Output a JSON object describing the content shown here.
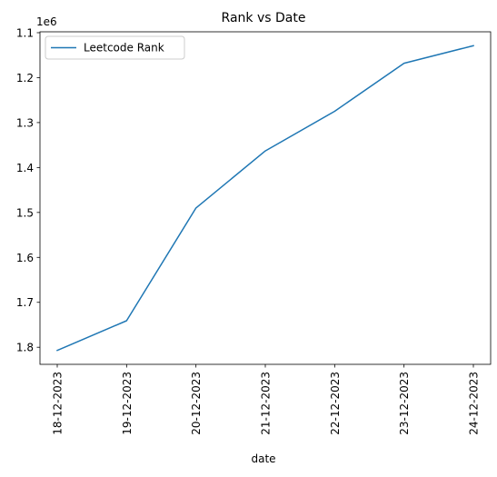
{
  "chart_data": {
    "type": "line",
    "title": "Rank vs Date",
    "xlabel": "date",
    "ylabel": "",
    "y_offset_label": "1e6",
    "y_inverted": true,
    "ylim": [
      1.838,
      1.098
    ],
    "yticks": [
      1.1,
      1.2,
      1.3,
      1.4,
      1.5,
      1.6,
      1.7,
      1.8
    ],
    "ytick_labels": [
      "1.1",
      "1.2",
      "1.3",
      "1.4",
      "1.5",
      "1.6",
      "1.7",
      "1.8"
    ],
    "categories": [
      "18-12-2023",
      "19-12-2023",
      "20-12-2023",
      "21-12-2023",
      "22-12-2023",
      "23-12-2023",
      "24-12-2023"
    ],
    "grid": false,
    "legend_position": "upper left",
    "series": [
      {
        "name": "Leetcode Rank",
        "color": "#1f77b4",
        "values": [
          1.807,
          1.741,
          1.49,
          1.363,
          1.275,
          1.168,
          1.129
        ]
      }
    ]
  }
}
